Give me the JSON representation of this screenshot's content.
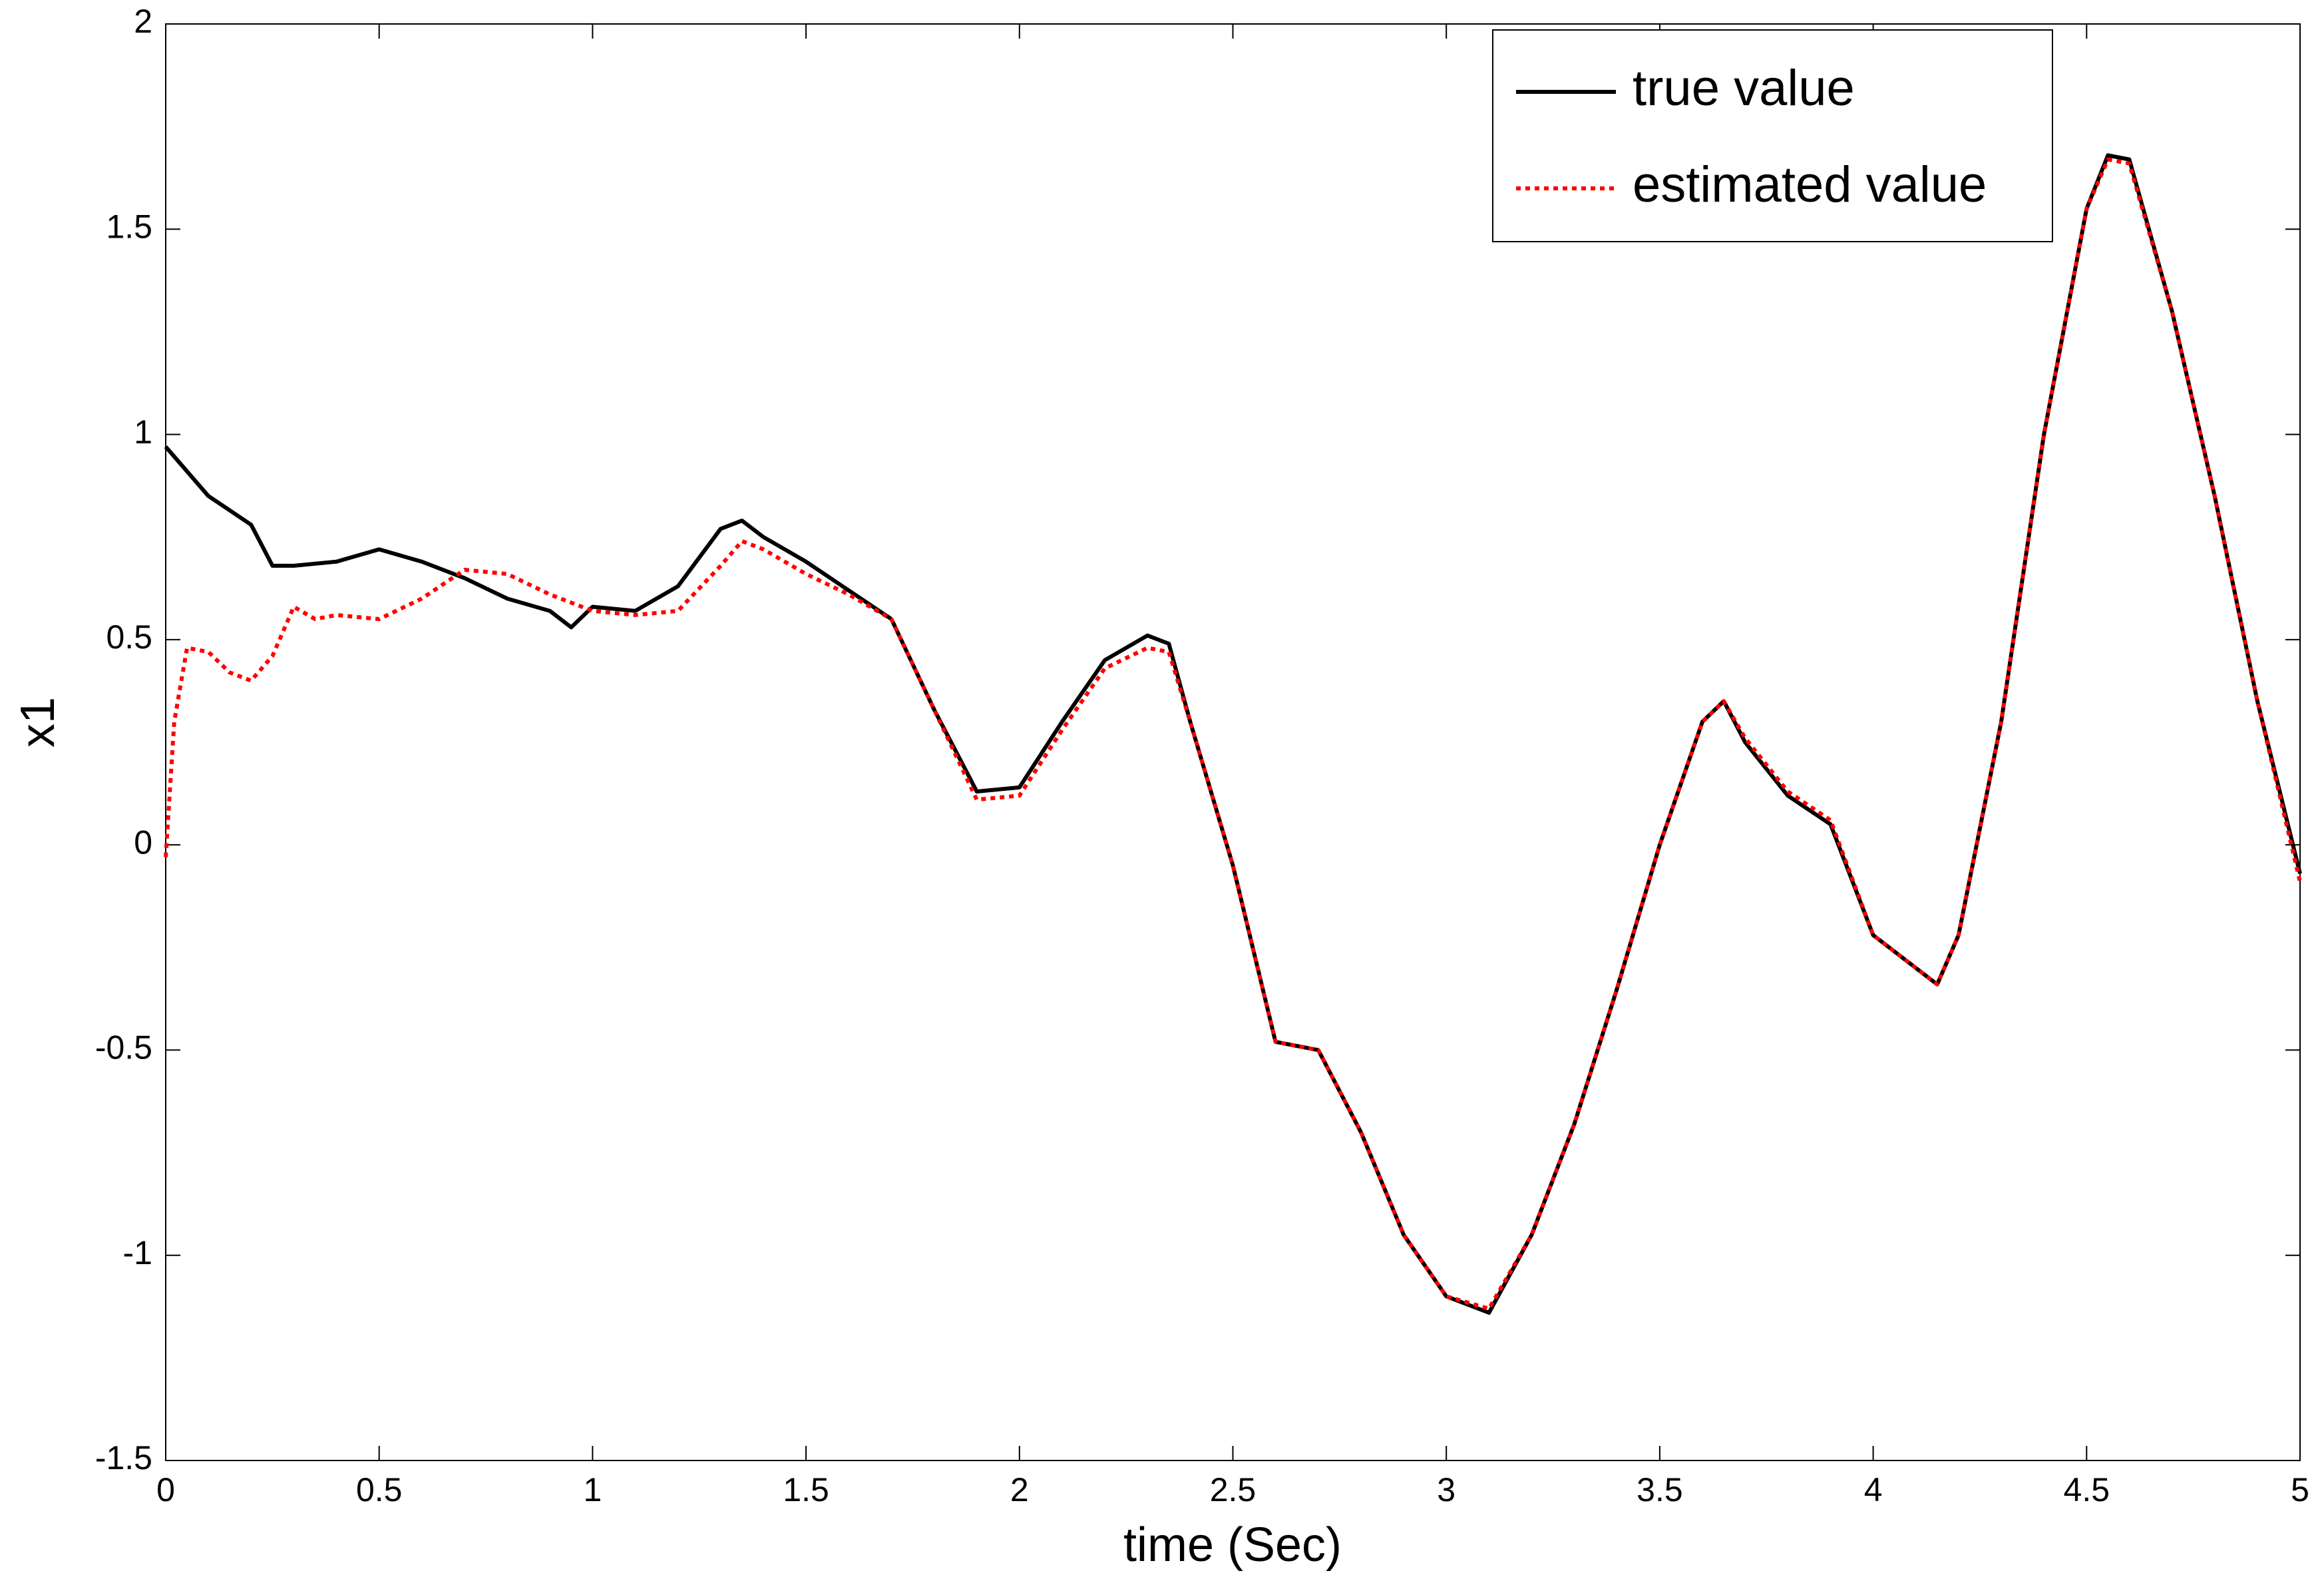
{
  "chart_data": {
    "type": "line",
    "xlabel": "time (Sec)",
    "ylabel": "x1",
    "xlim": [
      0,
      5
    ],
    "ylim": [
      -1.5,
      2
    ],
    "xticks": [
      0,
      0.5,
      1,
      1.5,
      2,
      2.5,
      3,
      3.5,
      4,
      4.5,
      5
    ],
    "yticks": [
      -1.5,
      -1,
      -0.5,
      0,
      0.5,
      1,
      1.5,
      2
    ],
    "grid": false,
    "legend": "upper right",
    "series": [
      {
        "name": "true value",
        "color": "#000000",
        "style": "solid",
        "x": [
          0,
          0.1,
          0.2,
          0.25,
          0.3,
          0.4,
          0.5,
          0.6,
          0.7,
          0.8,
          0.9,
          0.95,
          1.0,
          1.1,
          1.2,
          1.3,
          1.35,
          1.4,
          1.5,
          1.6,
          1.7,
          1.8,
          1.9,
          2.0,
          2.1,
          2.2,
          2.3,
          2.35,
          2.4,
          2.5,
          2.6,
          2.7,
          2.8,
          2.9,
          3.0,
          3.1,
          3.2,
          3.3,
          3.4,
          3.5,
          3.6,
          3.65,
          3.7,
          3.8,
          3.9,
          4.0,
          4.1,
          4.15,
          4.2,
          4.3,
          4.4,
          4.5,
          4.55,
          4.6,
          4.7,
          4.8,
          4.9,
          5.0
        ],
        "values": [
          0.97,
          0.85,
          0.78,
          0.68,
          0.68,
          0.69,
          0.72,
          0.69,
          0.65,
          0.6,
          0.57,
          0.53,
          0.58,
          0.57,
          0.63,
          0.77,
          0.79,
          0.75,
          0.69,
          0.62,
          0.55,
          0.33,
          0.13,
          0.14,
          0.3,
          0.45,
          0.51,
          0.49,
          0.3,
          -0.05,
          -0.48,
          -0.5,
          -0.7,
          -0.95,
          -1.1,
          -1.14,
          -0.95,
          -0.68,
          -0.35,
          0.0,
          0.3,
          0.35,
          0.25,
          0.12,
          0.05,
          -0.22,
          -0.3,
          -0.34,
          -0.22,
          0.3,
          1.0,
          1.55,
          1.68,
          1.67,
          1.3,
          0.85,
          0.35,
          -0.07
        ]
      },
      {
        "name": "estimated value",
        "color": "#ff0000",
        "style": "dotted",
        "x": [
          0,
          0.02,
          0.05,
          0.1,
          0.15,
          0.2,
          0.25,
          0.3,
          0.35,
          0.4,
          0.5,
          0.6,
          0.7,
          0.8,
          0.9,
          1.0,
          1.1,
          1.2,
          1.3,
          1.35,
          1.4,
          1.5,
          1.6,
          1.7,
          1.8,
          1.9,
          2.0,
          2.1,
          2.2,
          2.3,
          2.35,
          2.4,
          2.5,
          2.6,
          2.7,
          2.8,
          2.9,
          3.0,
          3.1,
          3.2,
          3.3,
          3.4,
          3.5,
          3.6,
          3.65,
          3.7,
          3.8,
          3.9,
          4.0,
          4.1,
          4.15,
          4.2,
          4.3,
          4.4,
          4.5,
          4.55,
          4.6,
          4.7,
          4.8,
          4.9,
          5.0
        ],
        "values": [
          -0.03,
          0.3,
          0.48,
          0.47,
          0.42,
          0.4,
          0.46,
          0.58,
          0.55,
          0.56,
          0.55,
          0.6,
          0.67,
          0.66,
          0.61,
          0.57,
          0.56,
          0.57,
          0.68,
          0.74,
          0.72,
          0.66,
          0.61,
          0.55,
          0.33,
          0.11,
          0.12,
          0.28,
          0.43,
          0.48,
          0.47,
          0.3,
          -0.05,
          -0.48,
          -0.5,
          -0.7,
          -0.95,
          -1.1,
          -1.13,
          -0.95,
          -0.68,
          -0.35,
          0.0,
          0.3,
          0.35,
          0.26,
          0.13,
          0.06,
          -0.22,
          -0.3,
          -0.34,
          -0.22,
          0.3,
          1.0,
          1.55,
          1.67,
          1.66,
          1.3,
          0.85,
          0.35,
          -0.09
        ]
      }
    ]
  }
}
